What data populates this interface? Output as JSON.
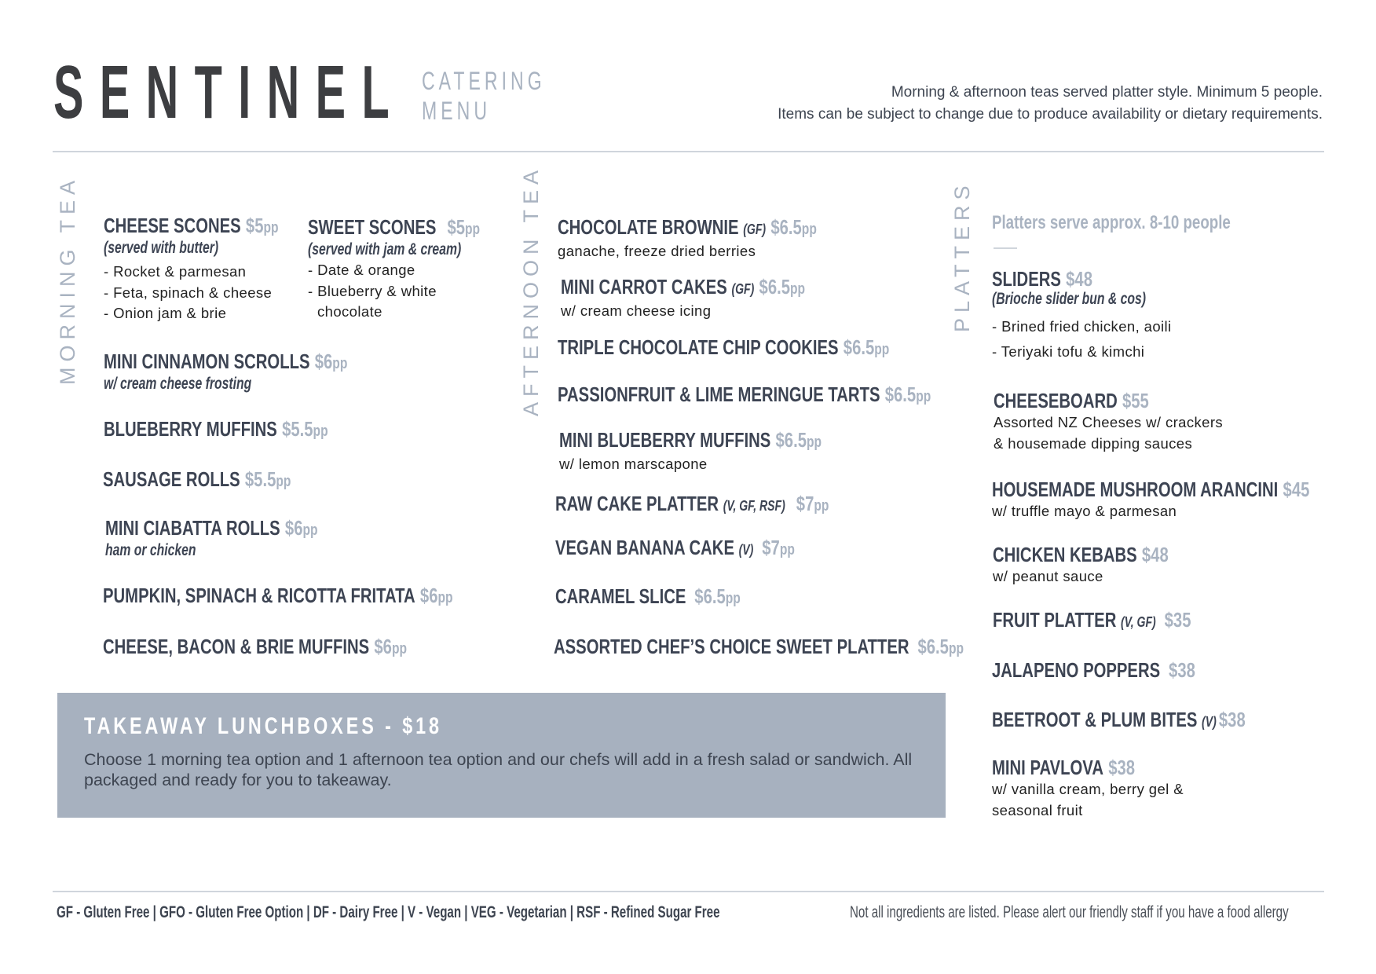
{
  "header": {
    "brand": "SENTINEL",
    "subtitle_line1": "CATERING",
    "subtitle_line2": "MENU",
    "intro_line1": "Morning & afternoon teas served platter style.  Minimum 5 people.",
    "intro_line2": "Items can be subject to change due to produce availability or dietary requirements."
  },
  "morning_tea": {
    "label": "MORNING TEA",
    "items": [
      {
        "name": "CHEESE SCONES",
        "price": "$5",
        "unit": "pp",
        "sub": "(served with butter)",
        "bullets": [
          "- Rocket & parmesan",
          "- Feta, spinach & cheese",
          "- Onion jam & brie"
        ]
      },
      {
        "name": "SWEET SCONES",
        "price": "$5",
        "unit": "pp",
        "sub": "(served with jam & cream)",
        "bullets": [
          "- Date & orange",
          "- Blueberry & white chocolate"
        ]
      },
      {
        "name": "MINI CINNAMON SCROLLS",
        "price": "$6",
        "unit": "pp",
        "sub": "w/ cream cheese frosting"
      },
      {
        "name": "BLUEBERRY MUFFINS",
        "price": "$5.5",
        "unit": "pp"
      },
      {
        "name": "SAUSAGE ROLLS",
        "price": "$5.5",
        "unit": "pp"
      },
      {
        "name": "MINI CIABATTA ROLLS",
        "price": "$6",
        "unit": "pp",
        "sub": "ham or chicken"
      },
      {
        "name": "PUMPKIN, SPINACH & RICOTTA FRITATA",
        "price": "$6",
        "unit": "pp"
      },
      {
        "name": "CHEESE, BACON & BRIE MUFFINS",
        "price": "$6",
        "unit": "pp"
      }
    ]
  },
  "afternoon_tea": {
    "label": "AFTERNOON TEA",
    "items": [
      {
        "name": "CHOCOLATE BROWNIE",
        "tag": "(GF)",
        "price": "$6.5",
        "unit": "pp",
        "desc": "ganache, freeze dried berries"
      },
      {
        "name": "MINI CARROT CAKES",
        "tag": "(GF)",
        "price": "$6.5",
        "unit": "pp",
        "desc": "w/ cream cheese icing"
      },
      {
        "name": "TRIPLE CHOCOLATE CHIP COOKIES",
        "price": "$6.5",
        "unit": "pp"
      },
      {
        "name": "PASSIONFRUIT & LIME MERINGUE TARTS",
        "price": "$6.5",
        "unit": "pp"
      },
      {
        "name": "MINI BLUEBERRY MUFFINS",
        "price": "$6.5",
        "unit": "pp",
        "desc": "w/ lemon marscapone"
      },
      {
        "name": "RAW CAKE PLATTER",
        "tag": "(V, GF, RSF)",
        "price": "$7",
        "unit": "pp"
      },
      {
        "name": "VEGAN BANANA CAKE",
        "tag": "(V)",
        "price": "$7",
        "unit": "pp"
      },
      {
        "name": "CARAMEL SLICE",
        "price": "$6.5",
        "unit": "pp"
      },
      {
        "name": "ASSORTED CHEF’S CHOICE SWEET PLATTER",
        "price": "$6.5",
        "unit": "pp"
      }
    ]
  },
  "platters": {
    "label": "PLATTERS",
    "note": "Platters serve approx. 8-10 people",
    "items": [
      {
        "name": "SLIDERS",
        "price": "$48",
        "sub": "(Brioche slider bun & cos)",
        "bullets": [
          "- Brined fried chicken, aoili",
          "- Teriyaki tofu & kimchi"
        ]
      },
      {
        "name": "CHEESEBOARD",
        "price": "$55",
        "desc": [
          "Assorted NZ Cheeses w/ crackers",
          "& housemade dipping sauces"
        ]
      },
      {
        "name": "HOUSEMADE MUSHROOM ARANCINI",
        "price": "$45",
        "desc": [
          "w/ truffle mayo & parmesan"
        ]
      },
      {
        "name": "CHICKEN KEBABS",
        "price": "$48",
        "desc": [
          "w/ peanut sauce"
        ]
      },
      {
        "name": "FRUIT PLATTER",
        "tag": "(V, GF)",
        "price": "$35"
      },
      {
        "name": "JALAPENO POPPERS",
        "price": "$38"
      },
      {
        "name": "BEETROOT & PLUM BITES",
        "tag": "(V)",
        "price": "$38"
      },
      {
        "name": "MINI PAVLOVA",
        "price": "$38",
        "desc": [
          "w/ vanilla cream, berry gel &",
          "seasonal fruit"
        ]
      }
    ]
  },
  "lunchbox": {
    "title": "TAKEAWAY LUNCHBOXES - $18",
    "body": "Choose 1 morning tea option and 1 afternoon tea option and our chefs will add in a fresh salad or sandwich. All packaged and ready for you to takeaway."
  },
  "footer": {
    "legend": "GF - Gluten Free  |   GFO - Gluten Free Option  |  DF - Dairy Free  |   V -  Vegan  |   VEG -  Vegetarian   |   RSF -  Refined Sugar Free",
    "allergy_note": "Not all ingredients are listed. Please alert our friendly staff if you have a food allergy"
  },
  "colors": {
    "title": "#3d4453",
    "price": "#a9b3c1",
    "box": "#a7b1bf",
    "rule": "#d0d5dc"
  }
}
